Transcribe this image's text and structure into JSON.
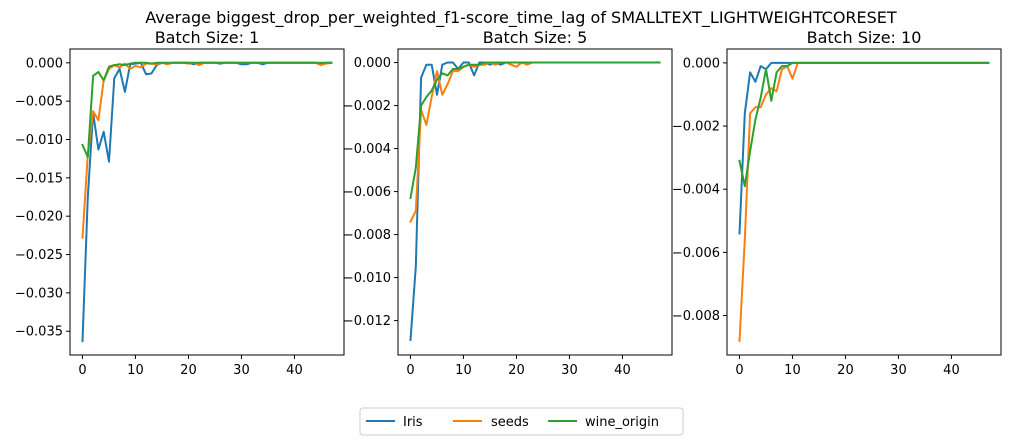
{
  "figure": {
    "suptitle": "Average biggest_drop_per_weighted_f1-score_time_lag of SMALLTEXT_LIGHTWEIGHTCORESET"
  },
  "legend": {
    "placement": "bottom-center",
    "entries": [
      {
        "name": "Iris",
        "color": "#1f77b4"
      },
      {
        "name": "seeds",
        "color": "#ff7f0e"
      },
      {
        "name": "wine_origin",
        "color": "#2ca02c"
      }
    ]
  },
  "chart_data": [
    {
      "type": "line",
      "title": "Batch Size: 1",
      "xlabel": "",
      "ylabel": "",
      "xlim": [
        -2.35,
        49.35
      ],
      "ylim": [
        -0.0381,
        0.0018
      ],
      "xticks": [
        0,
        10,
        20,
        30,
        40
      ],
      "xtick_labels": [
        "0",
        "10",
        "20",
        "30",
        "40"
      ],
      "yticks": [
        0.0,
        -0.005,
        -0.01,
        -0.015,
        -0.02,
        -0.025,
        -0.03,
        -0.035
      ],
      "ytick_labels": [
        "0.000",
        "−0.005",
        "−0.010",
        "−0.015",
        "−0.020",
        "−0.025",
        "−0.030",
        "−0.035"
      ],
      "x": [
        0,
        1,
        2,
        3,
        4,
        5,
        6,
        7,
        8,
        9,
        10,
        11,
        12,
        13,
        14,
        15,
        16,
        17,
        18,
        19,
        20,
        21,
        22,
        23,
        24,
        25,
        26,
        27,
        28,
        29,
        30,
        31,
        32,
        33,
        34,
        35,
        36,
        37,
        38,
        39,
        40,
        41,
        42,
        43,
        44,
        45,
        46,
        47
      ],
      "series": [
        {
          "name": "Iris",
          "color": "#1f77b4",
          "values": [
            -0.0363,
            -0.0175,
            -0.0065,
            -0.0113,
            -0.009,
            -0.0129,
            -0.002,
            -0.0008,
            -0.0038,
            -0.0002,
            -0.0001,
            0,
            -0.0015,
            -0.0014,
            -0.0003,
            0,
            -0.0001,
            0,
            0,
            0,
            0,
            -0.0002,
            0,
            0,
            0,
            0,
            -0.0001,
            0,
            0,
            0,
            -0.0002,
            -0.0002,
            0,
            0,
            -0.0002,
            0,
            0,
            0,
            0,
            0,
            0,
            0,
            0,
            0,
            0,
            -0.0001,
            0,
            0
          ]
        },
        {
          "name": "seeds",
          "color": "#ff7f0e",
          "values": [
            -0.0228,
            -0.012,
            -0.0063,
            -0.0075,
            -0.0023,
            -0.0008,
            -0.0003,
            -0.0006,
            -0.0001,
            -0.0008,
            -0.0004,
            -0.0006,
            -0.0001,
            -0.0001,
            -0.0002,
            0,
            -0.0002,
            0,
            0,
            0,
            -0.0001,
            0,
            -0.0003,
            0,
            0,
            0,
            0,
            0,
            0,
            0,
            0,
            0,
            0,
            0,
            0,
            0,
            0,
            0,
            0,
            0,
            0,
            0,
            0,
            0,
            0,
            -0.0003,
            -0.0001,
            0
          ]
        },
        {
          "name": "wine_origin",
          "color": "#2ca02c",
          "values": [
            -0.0107,
            -0.0123,
            -0.0017,
            -0.0012,
            -0.0023,
            -0.0005,
            -0.0003,
            -0.0002,
            -0.0003,
            -0.0001,
            0,
            0,
            0,
            -0.0001,
            0,
            0,
            0,
            0,
            0,
            0,
            0,
            0,
            0,
            0,
            0,
            0,
            0,
            0,
            0,
            0,
            0,
            0,
            0,
            0,
            0,
            0,
            0,
            0,
            0,
            0,
            0,
            0,
            0,
            0,
            0,
            0,
            0,
            0
          ]
        }
      ]
    },
    {
      "type": "line",
      "title": "Batch Size: 5",
      "xlabel": "",
      "ylabel": "",
      "xlim": [
        -2.35,
        49.35
      ],
      "ylim": [
        -0.0136,
        0.00063
      ],
      "xticks": [
        0,
        10,
        20,
        30,
        40
      ],
      "xtick_labels": [
        "0",
        "10",
        "20",
        "30",
        "40"
      ],
      "yticks": [
        0.0,
        -0.002,
        -0.004,
        -0.006,
        -0.008,
        -0.01,
        -0.012
      ],
      "ytick_labels": [
        "0.000",
        "−0.002",
        "−0.004",
        "−0.006",
        "−0.008",
        "−0.010",
        "−0.012"
      ],
      "x": [
        0,
        1,
        2,
        3,
        4,
        5,
        6,
        7,
        8,
        9,
        10,
        11,
        12,
        13,
        14,
        15,
        16,
        17,
        18,
        19,
        20,
        21,
        22,
        23,
        24,
        25,
        26,
        27,
        28,
        29,
        30,
        31,
        32,
        33,
        34,
        35,
        36,
        37,
        38,
        39,
        40,
        41,
        42,
        43,
        44,
        45,
        46,
        47
      ],
      "series": [
        {
          "name": "Iris",
          "color": "#1f77b4",
          "values": [
            -0.0129,
            -0.0095,
            -0.0007,
            -0.0001,
            -0.0001,
            -0.0015,
            -0.0001,
            0,
            0,
            -0.0003,
            0,
            0,
            -0.0006,
            0,
            0,
            -0.0001,
            0,
            -0.0001,
            0,
            0,
            0,
            0,
            0,
            0,
            0,
            0,
            0,
            0,
            0,
            0,
            0,
            0,
            0,
            0,
            0,
            0,
            0,
            0,
            0,
            0,
            0,
            0,
            0,
            0,
            0,
            0,
            0,
            0
          ]
        },
        {
          "name": "seeds",
          "color": "#ff7f0e",
          "values": [
            -0.0074,
            -0.0069,
            -0.0022,
            -0.0029,
            -0.0016,
            -0.0004,
            -0.0015,
            -0.001,
            -0.0004,
            -0.0004,
            -0.0002,
            -0.0001,
            -0.0002,
            -0.0001,
            -0.0001,
            0,
            -0.0001,
            0,
            0,
            -0.0001,
            -0.0002,
            0,
            -0.0001,
            0,
            0,
            0,
            0,
            0,
            0,
            0,
            0,
            0,
            0,
            0,
            0,
            0,
            0,
            0,
            0,
            0,
            0,
            0,
            0,
            0,
            0,
            0,
            0,
            0
          ]
        },
        {
          "name": "wine_origin",
          "color": "#2ca02c",
          "values": [
            -0.0063,
            -0.0049,
            -0.002,
            -0.0016,
            -0.0013,
            -0.0008,
            -0.0005,
            -0.0006,
            -0.0003,
            -0.0003,
            -0.0002,
            -0.0001,
            -0.0001,
            -0.0001,
            0,
            0,
            0,
            0,
            0,
            0,
            0,
            0,
            0,
            0,
            0,
            0,
            0,
            0,
            0,
            0,
            0,
            0,
            0,
            0,
            0,
            0,
            0,
            0,
            0,
            0,
            0,
            0,
            0,
            0,
            0,
            0,
            0,
            0
          ]
        }
      ]
    },
    {
      "type": "line",
      "title": "Batch Size: 10",
      "xlabel": "",
      "ylabel": "",
      "xlim": [
        -2.35,
        49.35
      ],
      "ylim": [
        -0.00925,
        0.00044
      ],
      "xticks": [
        0,
        10,
        20,
        30,
        40
      ],
      "xtick_labels": [
        "0",
        "10",
        "20",
        "30",
        "40"
      ],
      "yticks": [
        0.0,
        -0.002,
        -0.004,
        -0.006,
        -0.008
      ],
      "ytick_labels": [
        "0.000",
        "−0.002",
        "−0.004",
        "−0.006",
        "−0.008"
      ],
      "x": [
        0,
        1,
        2,
        3,
        4,
        5,
        6,
        7,
        8,
        9,
        10,
        11,
        12,
        13,
        14,
        15,
        16,
        17,
        18,
        19,
        20,
        21,
        22,
        23,
        24,
        25,
        26,
        27,
        28,
        29,
        30,
        31,
        32,
        33,
        34,
        35,
        36,
        37,
        38,
        39,
        40,
        41,
        42,
        43,
        44,
        45,
        46,
        47
      ],
      "series": [
        {
          "name": "Iris",
          "color": "#1f77b4",
          "values": [
            -0.0054,
            -0.0016,
            -0.0003,
            -0.0006,
            -0.0001,
            -0.0002,
            0,
            0,
            0,
            0,
            0,
            0,
            0,
            0,
            0,
            0,
            0,
            0,
            0,
            0,
            0,
            0,
            0,
            0,
            0,
            0,
            0,
            0,
            0,
            0,
            0,
            0,
            0,
            0,
            0,
            0,
            0,
            0,
            0,
            0,
            0,
            0,
            0,
            0,
            0,
            0,
            0,
            0
          ]
        },
        {
          "name": "seeds",
          "color": "#ff7f0e",
          "values": [
            -0.0088,
            -0.0056,
            -0.0016,
            -0.0014,
            -0.0014,
            -0.001,
            -0.0008,
            -0.0009,
            -0.0002,
            -0.0001,
            -0.0005,
            0,
            0,
            0,
            0,
            0,
            0,
            0,
            0,
            0,
            0,
            0,
            0,
            0,
            0,
            0,
            0,
            0,
            0,
            0,
            0,
            0,
            0,
            0,
            0,
            0,
            0,
            0,
            0,
            0,
            0,
            0,
            0,
            0,
            0,
            0,
            0,
            0
          ]
        },
        {
          "name": "wine_origin",
          "color": "#2ca02c",
          "values": [
            -0.0031,
            -0.0039,
            -0.0028,
            -0.0018,
            -0.0011,
            -0.0002,
            -0.0012,
            -0.0003,
            -0.0001,
            -0.0001,
            0,
            0,
            0,
            0,
            0,
            0,
            0,
            0,
            0,
            0,
            0,
            0,
            0,
            0,
            0,
            0,
            0,
            0,
            0,
            0,
            0,
            0,
            0,
            0,
            0,
            0,
            0,
            0,
            0,
            0,
            0,
            0,
            0,
            0,
            0,
            0,
            0,
            0
          ]
        }
      ]
    }
  ]
}
